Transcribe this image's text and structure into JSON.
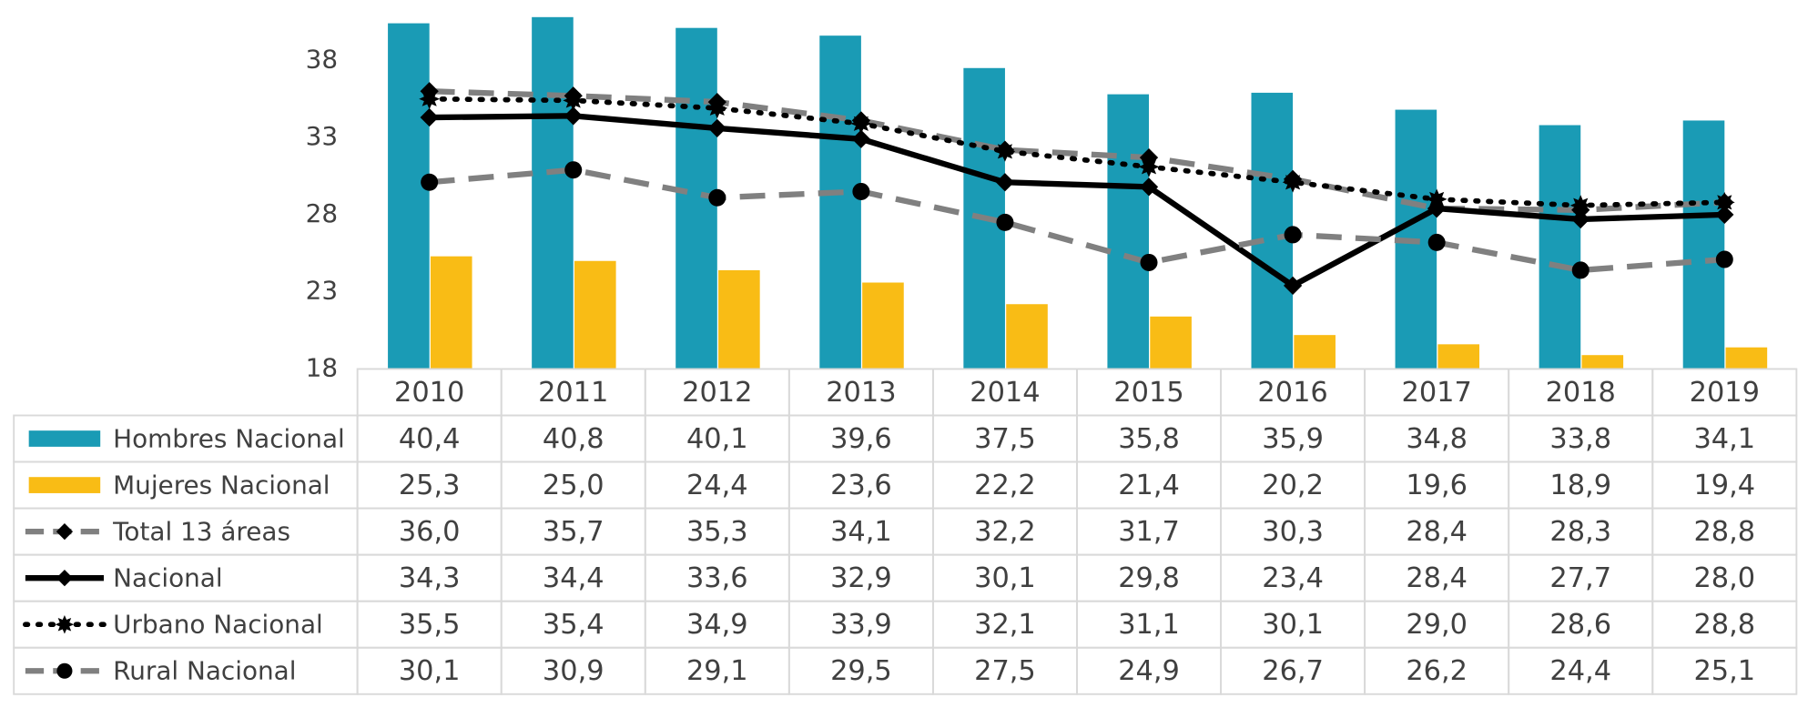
{
  "chart_data": {
    "type": "bar",
    "categories": [
      "2010",
      "2011",
      "2012",
      "2013",
      "2014",
      "2015",
      "2016",
      "2017",
      "2018",
      "2019"
    ],
    "ylim": [
      18,
      41.9
    ],
    "yticks": [
      18,
      23,
      28,
      33,
      38
    ],
    "series": [
      {
        "name": "Hombres Nacional",
        "type": "bar",
        "color": "#1a9bb5",
        "values": [
          40.4,
          40.8,
          40.1,
          39.6,
          37.5,
          35.8,
          35.9,
          34.8,
          33.8,
          34.1
        ],
        "value_labels": [
          "40,4",
          "40,8",
          "40,1",
          "39,6",
          "37,5",
          "35,8",
          "35,9",
          "34,8",
          "33,8",
          "34,1"
        ]
      },
      {
        "name": "Mujeres Nacional",
        "type": "bar",
        "color": "#f9bc15",
        "values": [
          25.3,
          25.0,
          24.4,
          23.6,
          22.2,
          21.4,
          20.2,
          19.6,
          18.9,
          19.4
        ],
        "value_labels": [
          "25,3",
          "25,0",
          "24,4",
          "23,6",
          "22,2",
          "21,4",
          "20,2",
          "19,6",
          "18,9",
          "19,4"
        ]
      },
      {
        "name": "Total 13 áreas",
        "type": "line",
        "color": "#808080",
        "dash": "dashed",
        "marker": "diamond",
        "values": [
          36.0,
          35.7,
          35.3,
          34.1,
          32.2,
          31.7,
          30.3,
          28.4,
          28.3,
          28.8
        ],
        "value_labels": [
          "36,0",
          "35,7",
          "35,3",
          "34,1",
          "32,2",
          "31,7",
          "30,3",
          "28,4",
          "28,3",
          "28,8"
        ]
      },
      {
        "name": "Nacional",
        "type": "line",
        "color": "#000000",
        "dash": "solid",
        "marker": "diamond",
        "values": [
          34.3,
          34.4,
          33.6,
          32.9,
          30.1,
          29.8,
          23.4,
          28.4,
          27.7,
          28.0
        ],
        "value_labels": [
          "34,3",
          "34,4",
          "33,6",
          "32,9",
          "30,1",
          "29,8",
          "23,4",
          "28,4",
          "27,7",
          "28,0"
        ]
      },
      {
        "name": "Urbano Nacional",
        "type": "line",
        "color": "#000000",
        "dash": "dotted",
        "marker": "star",
        "values": [
          35.5,
          35.4,
          34.9,
          33.9,
          32.1,
          31.1,
          30.1,
          29.0,
          28.6,
          28.8
        ],
        "value_labels": [
          "35,5",
          "35,4",
          "34,9",
          "33,9",
          "32,1",
          "31,1",
          "30,1",
          "29,0",
          "28,6",
          "28,8"
        ]
      },
      {
        "name": "Rural Nacional",
        "type": "line",
        "color": "#808080",
        "dash": "dashed",
        "marker": "circle",
        "values": [
          30.1,
          30.9,
          29.1,
          29.5,
          27.5,
          24.9,
          26.7,
          26.2,
          24.4,
          25.1
        ],
        "value_labels": [
          "30,1",
          "30,9",
          "29,1",
          "29,5",
          "27,5",
          "24,9",
          "26,7",
          "26,2",
          "24,4",
          "25,1"
        ]
      }
    ]
  }
}
